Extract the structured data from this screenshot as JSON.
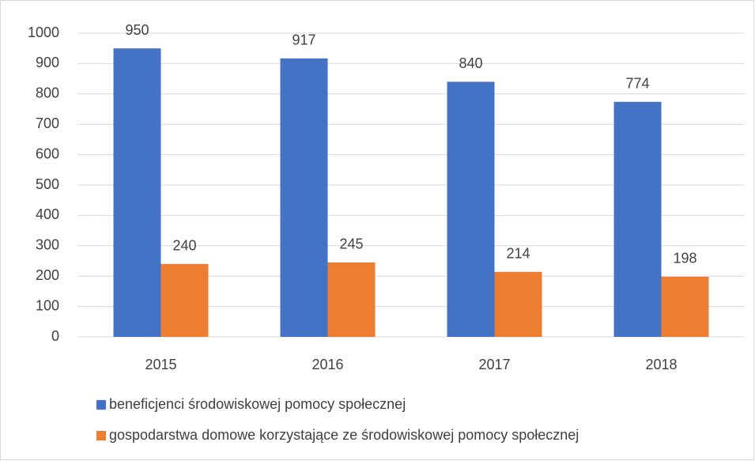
{
  "chart_data": {
    "type": "bar",
    "categories": [
      "2015",
      "2016",
      "2017",
      "2018"
    ],
    "series": [
      {
        "name": "beneficjenci środowiskowej pomocy społecznej",
        "color": "#4472c4",
        "values": [
          950,
          917,
          840,
          774
        ]
      },
      {
        "name": "gospodarstwa domowe korzystające ze środowiskowej pomocy społecznej",
        "color": "#ed7d31",
        "values": [
          240,
          245,
          214,
          198
        ]
      }
    ],
    "ylim": [
      0,
      1000
    ],
    "yticks": [
      0,
      100,
      200,
      300,
      400,
      500,
      600,
      700,
      800,
      900,
      1000
    ],
    "grid": true,
    "data_labels": true,
    "legend": "bottom"
  }
}
